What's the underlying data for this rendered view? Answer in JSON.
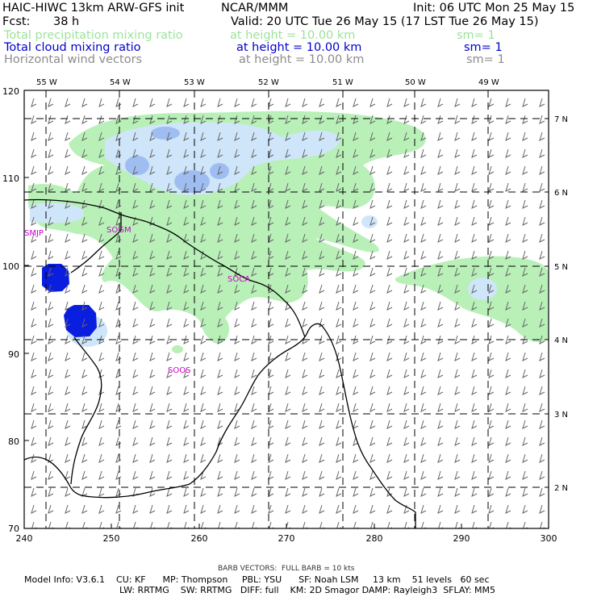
{
  "header": {
    "title": "HAIC-HIWC 13km ARW-GFS init",
    "org": "NCAR/MMM",
    "init": "Init: 06 UTC Mon 25 May 15",
    "fcst_label": "Fcst:",
    "fcst_value": "38 h",
    "valid": "Valid: 20 UTC Tue 26 May 15 (17 LST Tue 26 May 15)"
  },
  "fields": [
    {
      "name": "Total precipitation mixing ratio",
      "level": "at height = 10.00 km",
      "sm": "sm= 1",
      "color": "#9be39b"
    },
    {
      "name": "Total cloud mixing ratio",
      "level": "at height = 10.00 km",
      "sm": "sm= 1",
      "color": "#0000cc"
    },
    {
      "name": "Horizontal wind vectors",
      "level": "at height = 10.00 km",
      "sm": "sm= 1",
      "color": "#8c8c8c"
    }
  ],
  "axes": {
    "top_lon_labels": [
      "55 W",
      "54 W",
      "53 W",
      "52 W",
      "51 W",
      "50 W",
      "49 W"
    ],
    "right_lat_labels": [
      "7 N",
      "6 N",
      "5 N",
      "4 N",
      "3 N",
      "2 N"
    ],
    "left_grid_labels": [
      "120",
      "110",
      "100",
      "90",
      "80",
      "70"
    ],
    "bottom_grid_labels": [
      "240",
      "250",
      "260",
      "270",
      "280",
      "290",
      "300"
    ]
  },
  "stations": [
    "SMJP",
    "SOGM",
    "SOCA",
    "SOOS"
  ],
  "footer": {
    "barb": "BARB VECTORS:  FULL BARB = 10 kts",
    "model_line1": "Model Info: V3.6.1    CU: KF      MP: Thompson     PBL: YSU      SF: Noah LSM     13 km    51 levels   60 sec",
    "model_line2": "LW: RRTMG    SW: RRTMG   DIFF: full    KM: 2D Smagor DAMP: Rayleigh3  SFLAY: MM5"
  },
  "colors": {
    "precip": "#b8f0b8",
    "cloud_light": "#cfe6fa",
    "cloud_mid": "#9fbdf0",
    "cloud_core": "#0a1ee0",
    "station_text": "#cc00cc",
    "barb": "#666666"
  }
}
